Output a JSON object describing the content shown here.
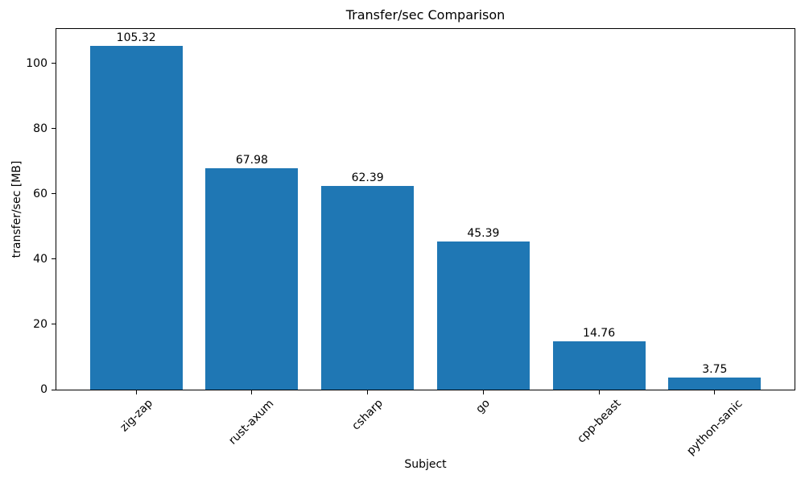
{
  "chart_data": {
    "type": "bar",
    "title": "Transfer/sec Comparison",
    "xlabel": "Subject",
    "ylabel": "transfer/sec [MB]",
    "categories": [
      "zig-zap",
      "rust-axum",
      "csharp",
      "go",
      "cpp-beast",
      "python-sanic"
    ],
    "values": [
      105.32,
      67.98,
      62.39,
      45.39,
      14.76,
      3.75
    ],
    "bar_labels": [
      "105.32",
      "67.98",
      "62.39",
      "45.39",
      "14.76",
      "3.75"
    ],
    "bar_color": "#1f77b4",
    "axis_color": "#000000",
    "text_color": "#000000",
    "xlim": [
      -0.69,
      5.69
    ],
    "ylim": [
      0,
      110.59
    ],
    "yticks": [
      0,
      20,
      40,
      60,
      80,
      100
    ],
    "ytick_labels": [
      "0",
      "20",
      "40",
      "60",
      "80",
      "100"
    ],
    "bar_width_units": 0.8,
    "xtick_rotation_deg": 45,
    "grid": false,
    "legend": false
  }
}
